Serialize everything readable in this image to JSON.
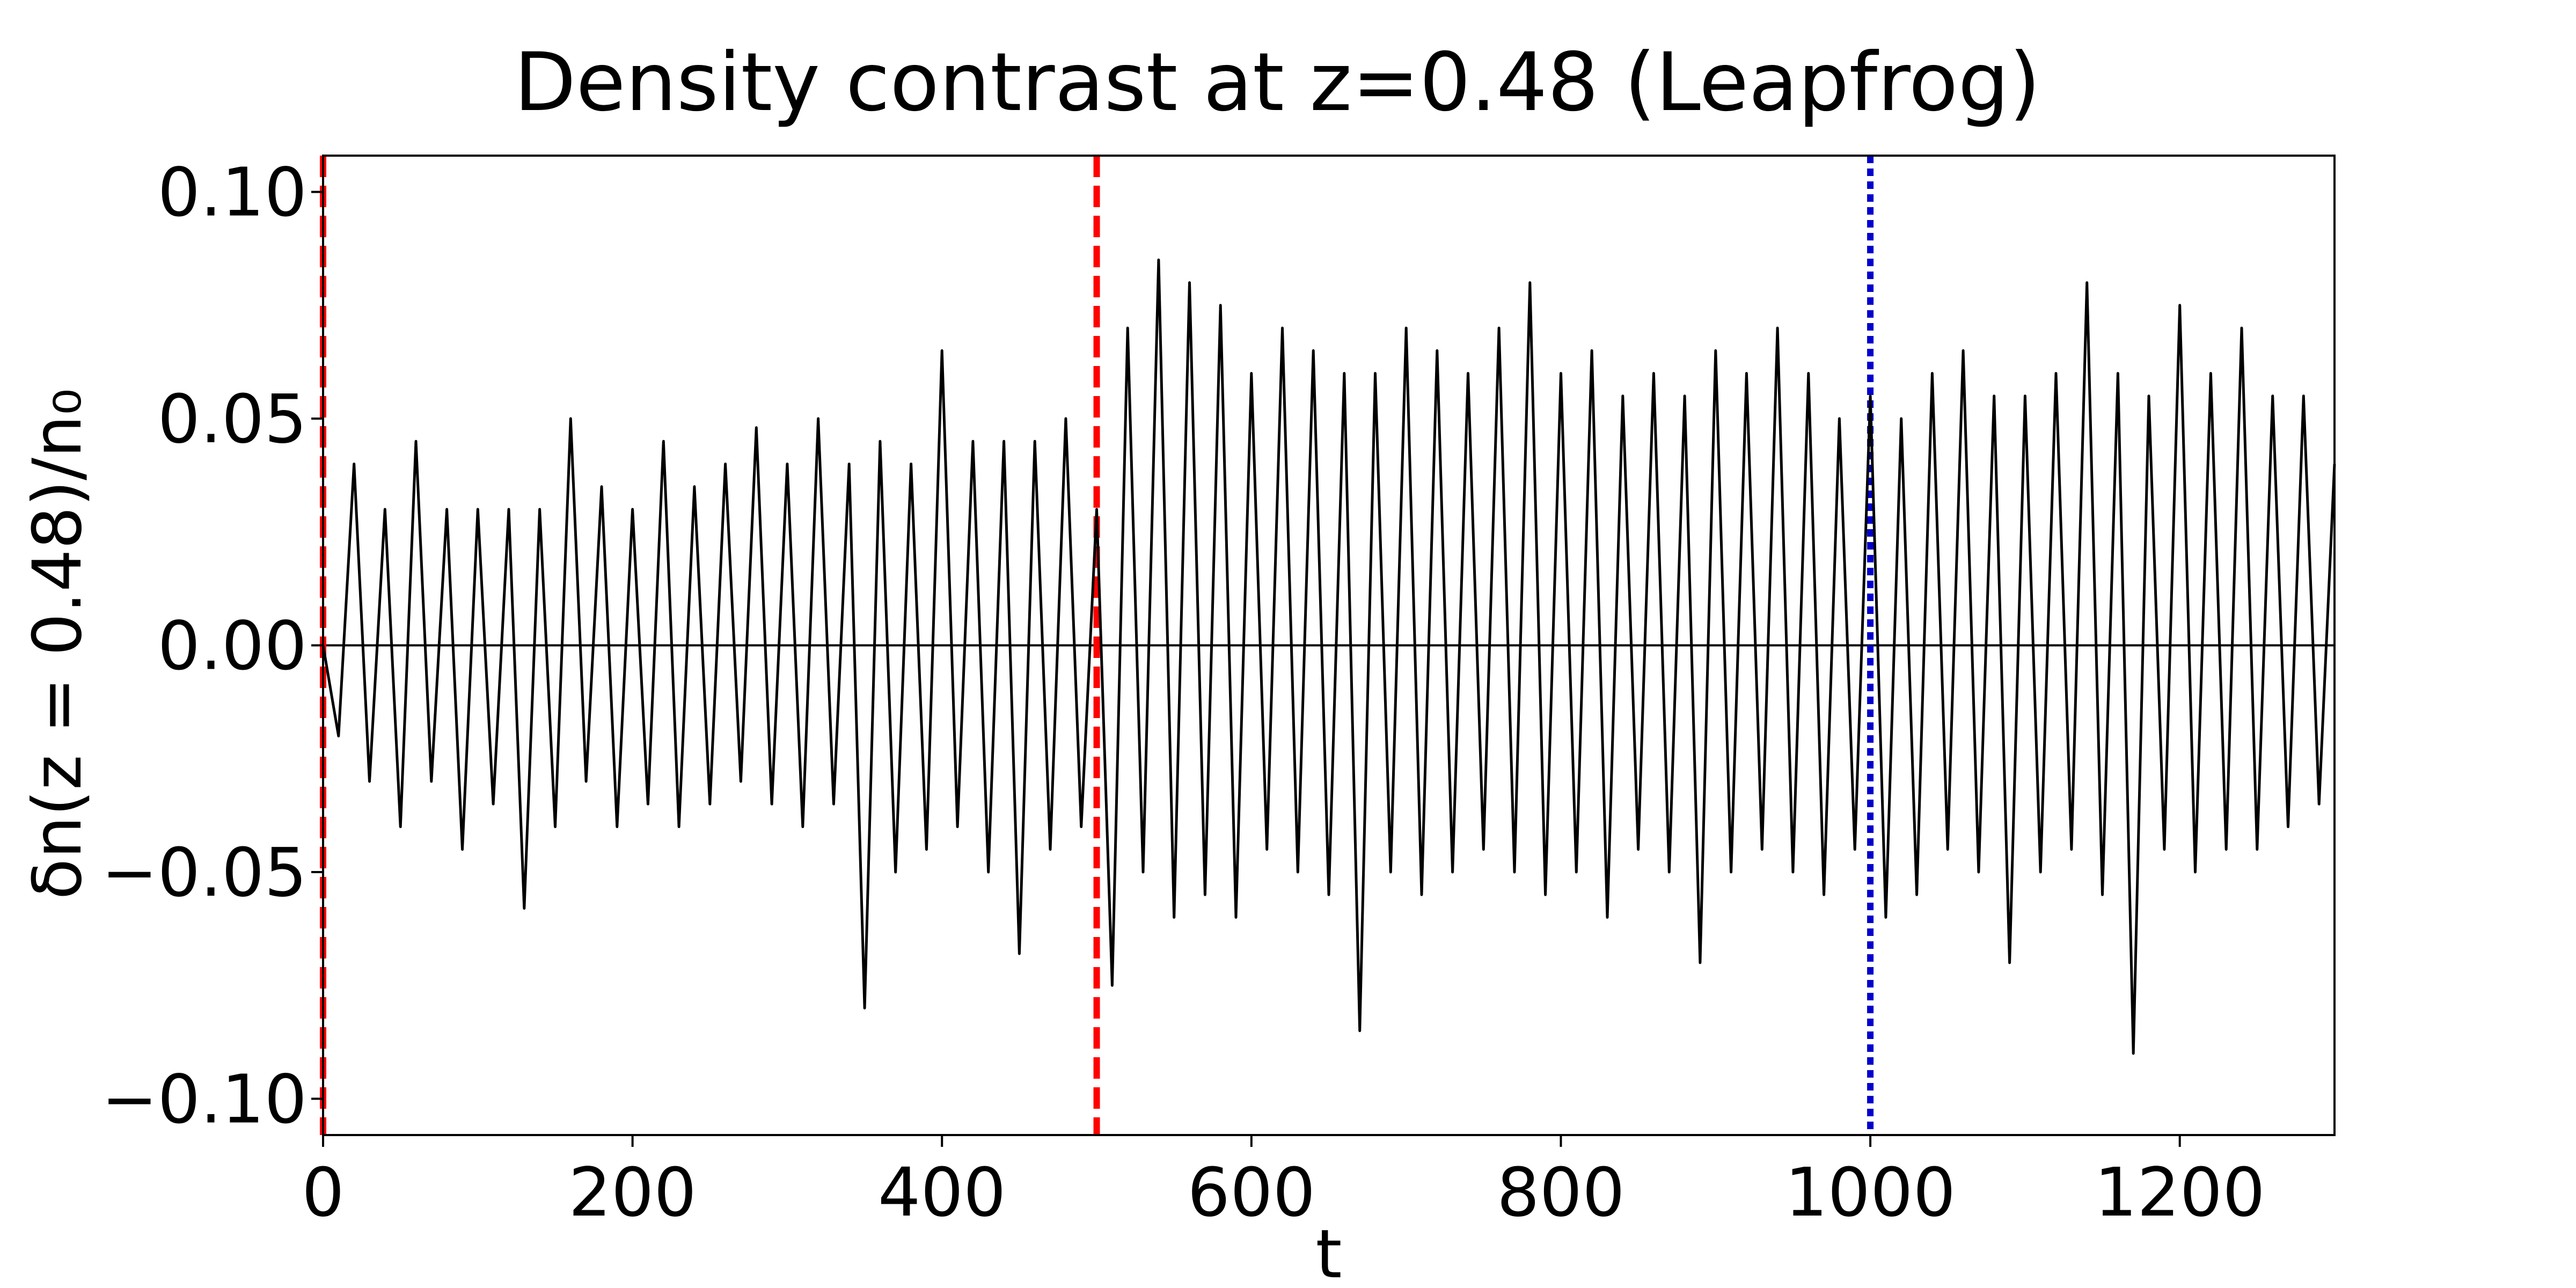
{
  "chart_data": {
    "type": "line",
    "title": "Density contrast at z=0.48 (Leapfrog)",
    "xlabel": "t",
    "ylabel": "δn(z = 0.48)/n₀",
    "xlim": [
      0,
      1300
    ],
    "ylim": [
      -0.108,
      0.108
    ],
    "x_ticks": [
      0,
      200,
      400,
      600,
      800,
      1000,
      1200
    ],
    "x_tick_labels": [
      "0",
      "200",
      "400",
      "600",
      "800",
      "1000",
      "1200"
    ],
    "y_ticks": [
      -0.1,
      -0.05,
      0.0,
      0.05,
      0.1
    ],
    "y_tick_labels": [
      "−0.10",
      "−0.05",
      "0.00",
      "0.05",
      "0.10"
    ],
    "grid": false,
    "reference_lines": [
      {
        "orientation": "horizontal",
        "value": 0.0,
        "color": "#000000",
        "style": "solid"
      },
      {
        "orientation": "vertical",
        "value": 0,
        "color": "#ff0000",
        "style": "dashed"
      },
      {
        "orientation": "vertical",
        "value": 500,
        "color": "#ff0000",
        "style": "dashed"
      },
      {
        "orientation": "vertical",
        "value": 1000,
        "color": "#0000cc",
        "style": "dotted"
      }
    ],
    "series": [
      {
        "color": "#000000",
        "x": [
          0,
          10,
          20,
          30,
          40,
          50,
          60,
          70,
          80,
          90,
          100,
          110,
          120,
          130,
          140,
          150,
          160,
          170,
          180,
          190,
          200,
          210,
          220,
          230,
          240,
          250,
          260,
          270,
          280,
          290,
          300,
          310,
          320,
          330,
          340,
          350,
          360,
          370,
          380,
          390,
          400,
          410,
          420,
          430,
          440,
          450,
          460,
          470,
          480,
          490,
          500,
          510,
          520,
          530,
          540,
          550,
          560,
          570,
          580,
          590,
          600,
          610,
          620,
          630,
          640,
          650,
          660,
          670,
          680,
          690,
          700,
          710,
          720,
          730,
          740,
          750,
          760,
          770,
          780,
          790,
          800,
          810,
          820,
          830,
          840,
          850,
          860,
          870,
          880,
          890,
          900,
          910,
          920,
          930,
          940,
          950,
          960,
          970,
          980,
          990,
          1000,
          1010,
          1020,
          1030,
          1040,
          1050,
          1060,
          1070,
          1080,
          1090,
          1100,
          1110,
          1120,
          1130,
          1140,
          1150,
          1160,
          1170,
          1180,
          1190,
          1200,
          1210,
          1220,
          1230,
          1240,
          1250,
          1260,
          1270,
          1280,
          1290,
          1300
        ],
        "y": [
          0,
          -0.02,
          0.04,
          -0.03,
          0.03,
          -0.04,
          0.045,
          -0.03,
          0.03,
          -0.045,
          0.03,
          -0.035,
          0.03,
          -0.058,
          0.03,
          -0.04,
          0.05,
          -0.03,
          0.035,
          -0.04,
          0.03,
          -0.035,
          0.045,
          -0.04,
          0.035,
          -0.035,
          0.04,
          -0.03,
          0.048,
          -0.035,
          0.04,
          -0.04,
          0.05,
          -0.035,
          0.04,
          -0.08,
          0.045,
          -0.05,
          0.04,
          -0.045,
          0.065,
          -0.04,
          0.045,
          -0.05,
          0.045,
          -0.068,
          0.045,
          -0.045,
          0.05,
          -0.04,
          0.03,
          -0.075,
          0.07,
          -0.05,
          0.085,
          -0.06,
          0.08,
          -0.055,
          0.075,
          -0.06,
          0.06,
          -0.045,
          0.07,
          -0.05,
          0.065,
          -0.055,
          0.06,
          -0.085,
          0.06,
          -0.05,
          0.07,
          -0.055,
          0.065,
          -0.05,
          0.06,
          -0.045,
          0.07,
          -0.05,
          0.08,
          -0.055,
          0.06,
          -0.05,
          0.065,
          -0.06,
          0.055,
          -0.045,
          0.06,
          -0.05,
          0.055,
          -0.07,
          0.065,
          -0.05,
          0.06,
          -0.045,
          0.07,
          -0.05,
          0.06,
          -0.055,
          0.05,
          -0.045,
          0.055,
          -0.06,
          0.05,
          -0.055,
          0.06,
          -0.045,
          0.065,
          -0.05,
          0.055,
          -0.07,
          0.055,
          -0.05,
          0.06,
          -0.045,
          0.08,
          -0.055,
          0.06,
          -0.09,
          0.055,
          -0.045,
          0.075,
          -0.05,
          0.06,
          -0.045,
          0.07,
          -0.045,
          0.055,
          -0.04,
          0.055,
          -0.035,
          0.04
        ]
      }
    ]
  }
}
